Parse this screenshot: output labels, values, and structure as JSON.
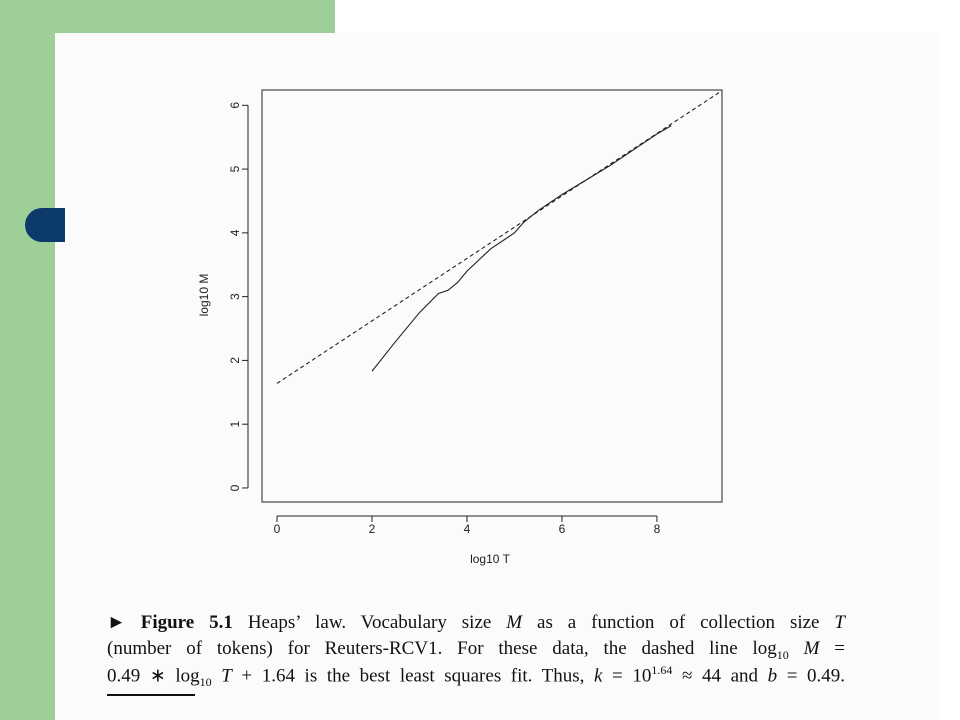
{
  "chart_data": {
    "type": "line",
    "xlabel": "log10 T",
    "ylabel": "log10 M",
    "xlim": [
      -0.316,
      9.37
    ],
    "ylim": [
      -0.22,
      6.24
    ],
    "xticks": [
      0,
      2,
      4,
      6,
      8
    ],
    "yticks": [
      0,
      1,
      2,
      3,
      4,
      5,
      6
    ],
    "series": [
      {
        "color": "#222222",
        "style": "solid",
        "x": [
          2,
          2.5,
          3,
          3.4,
          3.6,
          3.8,
          4,
          4.5,
          5,
          5.2,
          5.5,
          6,
          7,
          8,
          8.3
        ],
        "values": [
          1.83,
          2.3,
          2.75,
          3.05,
          3.1,
          3.22,
          3.4,
          3.75,
          4.0,
          4.17,
          4.35,
          4.6,
          5.05,
          5.55,
          5.68
        ]
      },
      {
        "color": "#222222",
        "style": "dashed",
        "x": [
          0,
          9.37
        ],
        "values": [
          1.64,
          6.23
        ]
      }
    ]
  },
  "caption": {
    "lines": [
      [
        {
          "b": "► Figure 5.1"
        },
        {
          "t": " Heaps’ law. Vocabulary size "
        },
        {
          "i": "M"
        },
        {
          "t": " as a function of collection size "
        },
        {
          "i": "T"
        }
      ],
      [
        {
          "t": "(number of tokens) for Reuters-RCV1. For these data, the dashed line log"
        },
        {
          "sub": "10"
        },
        {
          "t": " "
        },
        {
          "i": "M"
        },
        {
          "t": " ="
        }
      ],
      [
        {
          "t": "0.49 ∗ log"
        },
        {
          "sub": "10"
        },
        {
          "t": " "
        },
        {
          "i": "T"
        },
        {
          "t": " + 1.64 is the best least squares fit. Thus, "
        },
        {
          "i": "k"
        },
        {
          "t": " = 10"
        },
        {
          "sup": "1.64"
        },
        {
          "t": " ≈ 44 and "
        },
        {
          "i": "b"
        },
        {
          "t": " = 0.49."
        }
      ]
    ]
  }
}
